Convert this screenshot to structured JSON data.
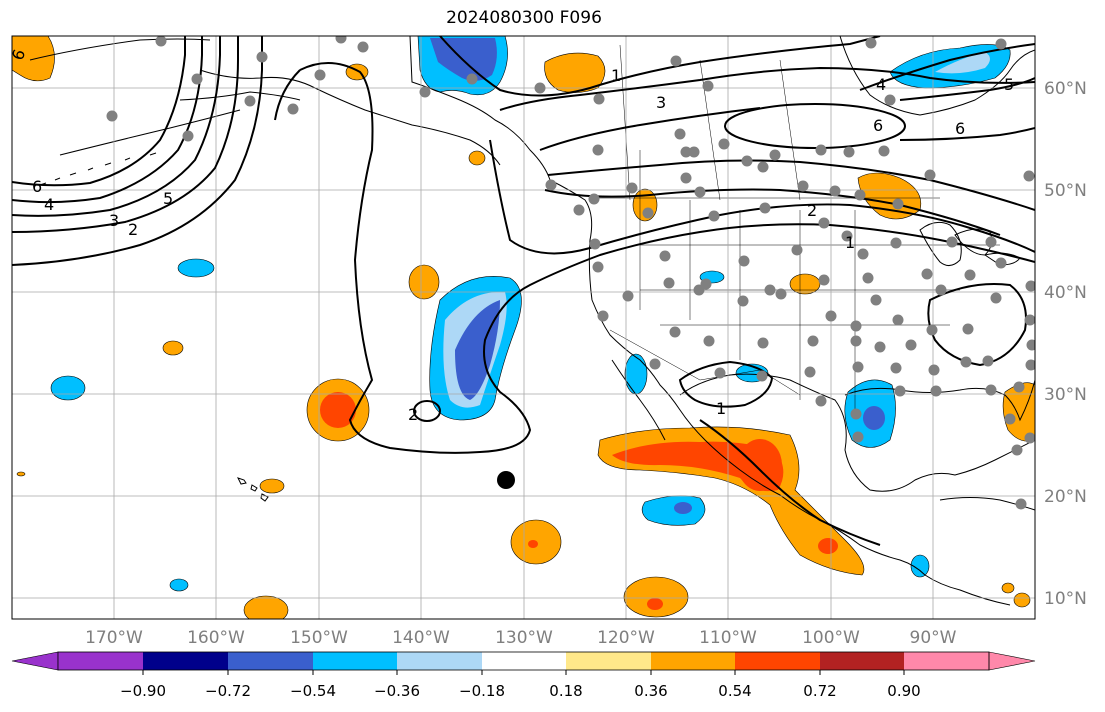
{
  "title": "2024080300 F096",
  "map": {
    "longitudes": [
      "170°W",
      "160°W",
      "150°W",
      "140°W",
      "130°W",
      "120°W",
      "110°W",
      "100°W",
      "90°W"
    ],
    "latitudes": [
      "60°N",
      "50°N",
      "40°N",
      "30°N",
      "20°N",
      "10°N"
    ],
    "contour_labels": [
      {
        "text": "6",
        "pos": "far-left-top"
      },
      {
        "text": "6",
        "pos": "left"
      },
      {
        "text": "4",
        "pos": "left"
      },
      {
        "text": "3",
        "pos": "left"
      },
      {
        "text": "2",
        "pos": "left"
      },
      {
        "text": "5",
        "pos": "left"
      },
      {
        "text": "1",
        "pos": "alaska-north"
      },
      {
        "text": "3",
        "pos": "canada"
      },
      {
        "text": "4",
        "pos": "hudson"
      },
      {
        "text": "5",
        "pos": "hudson-east"
      },
      {
        "text": "6",
        "pos": "canada-center"
      },
      {
        "text": "6",
        "pos": "quebec"
      },
      {
        "text": "2",
        "pos": "plains"
      },
      {
        "text": "1",
        "pos": "plains-south"
      },
      {
        "text": "2",
        "pos": "pacific"
      },
      {
        "text": "1",
        "pos": "mexico"
      }
    ],
    "colors": {
      "land_outline": "#000000",
      "grid": "#a9a9a9",
      "station_dot": "#808080"
    }
  },
  "colorbar": {
    "ticks": [
      "−0.90",
      "−0.72",
      "−0.54",
      "−0.36",
      "−0.18",
      "0.18",
      "0.36",
      "0.54",
      "0.72",
      "0.90"
    ],
    "colors": [
      "#9932cc",
      "#00008b",
      "#3a5fcd",
      "#00bfff",
      "#add8f6",
      "#ffffff",
      "#ffe88a",
      "#ffa500",
      "#ff4500",
      "#b22222",
      "#ff88aa"
    ]
  }
}
